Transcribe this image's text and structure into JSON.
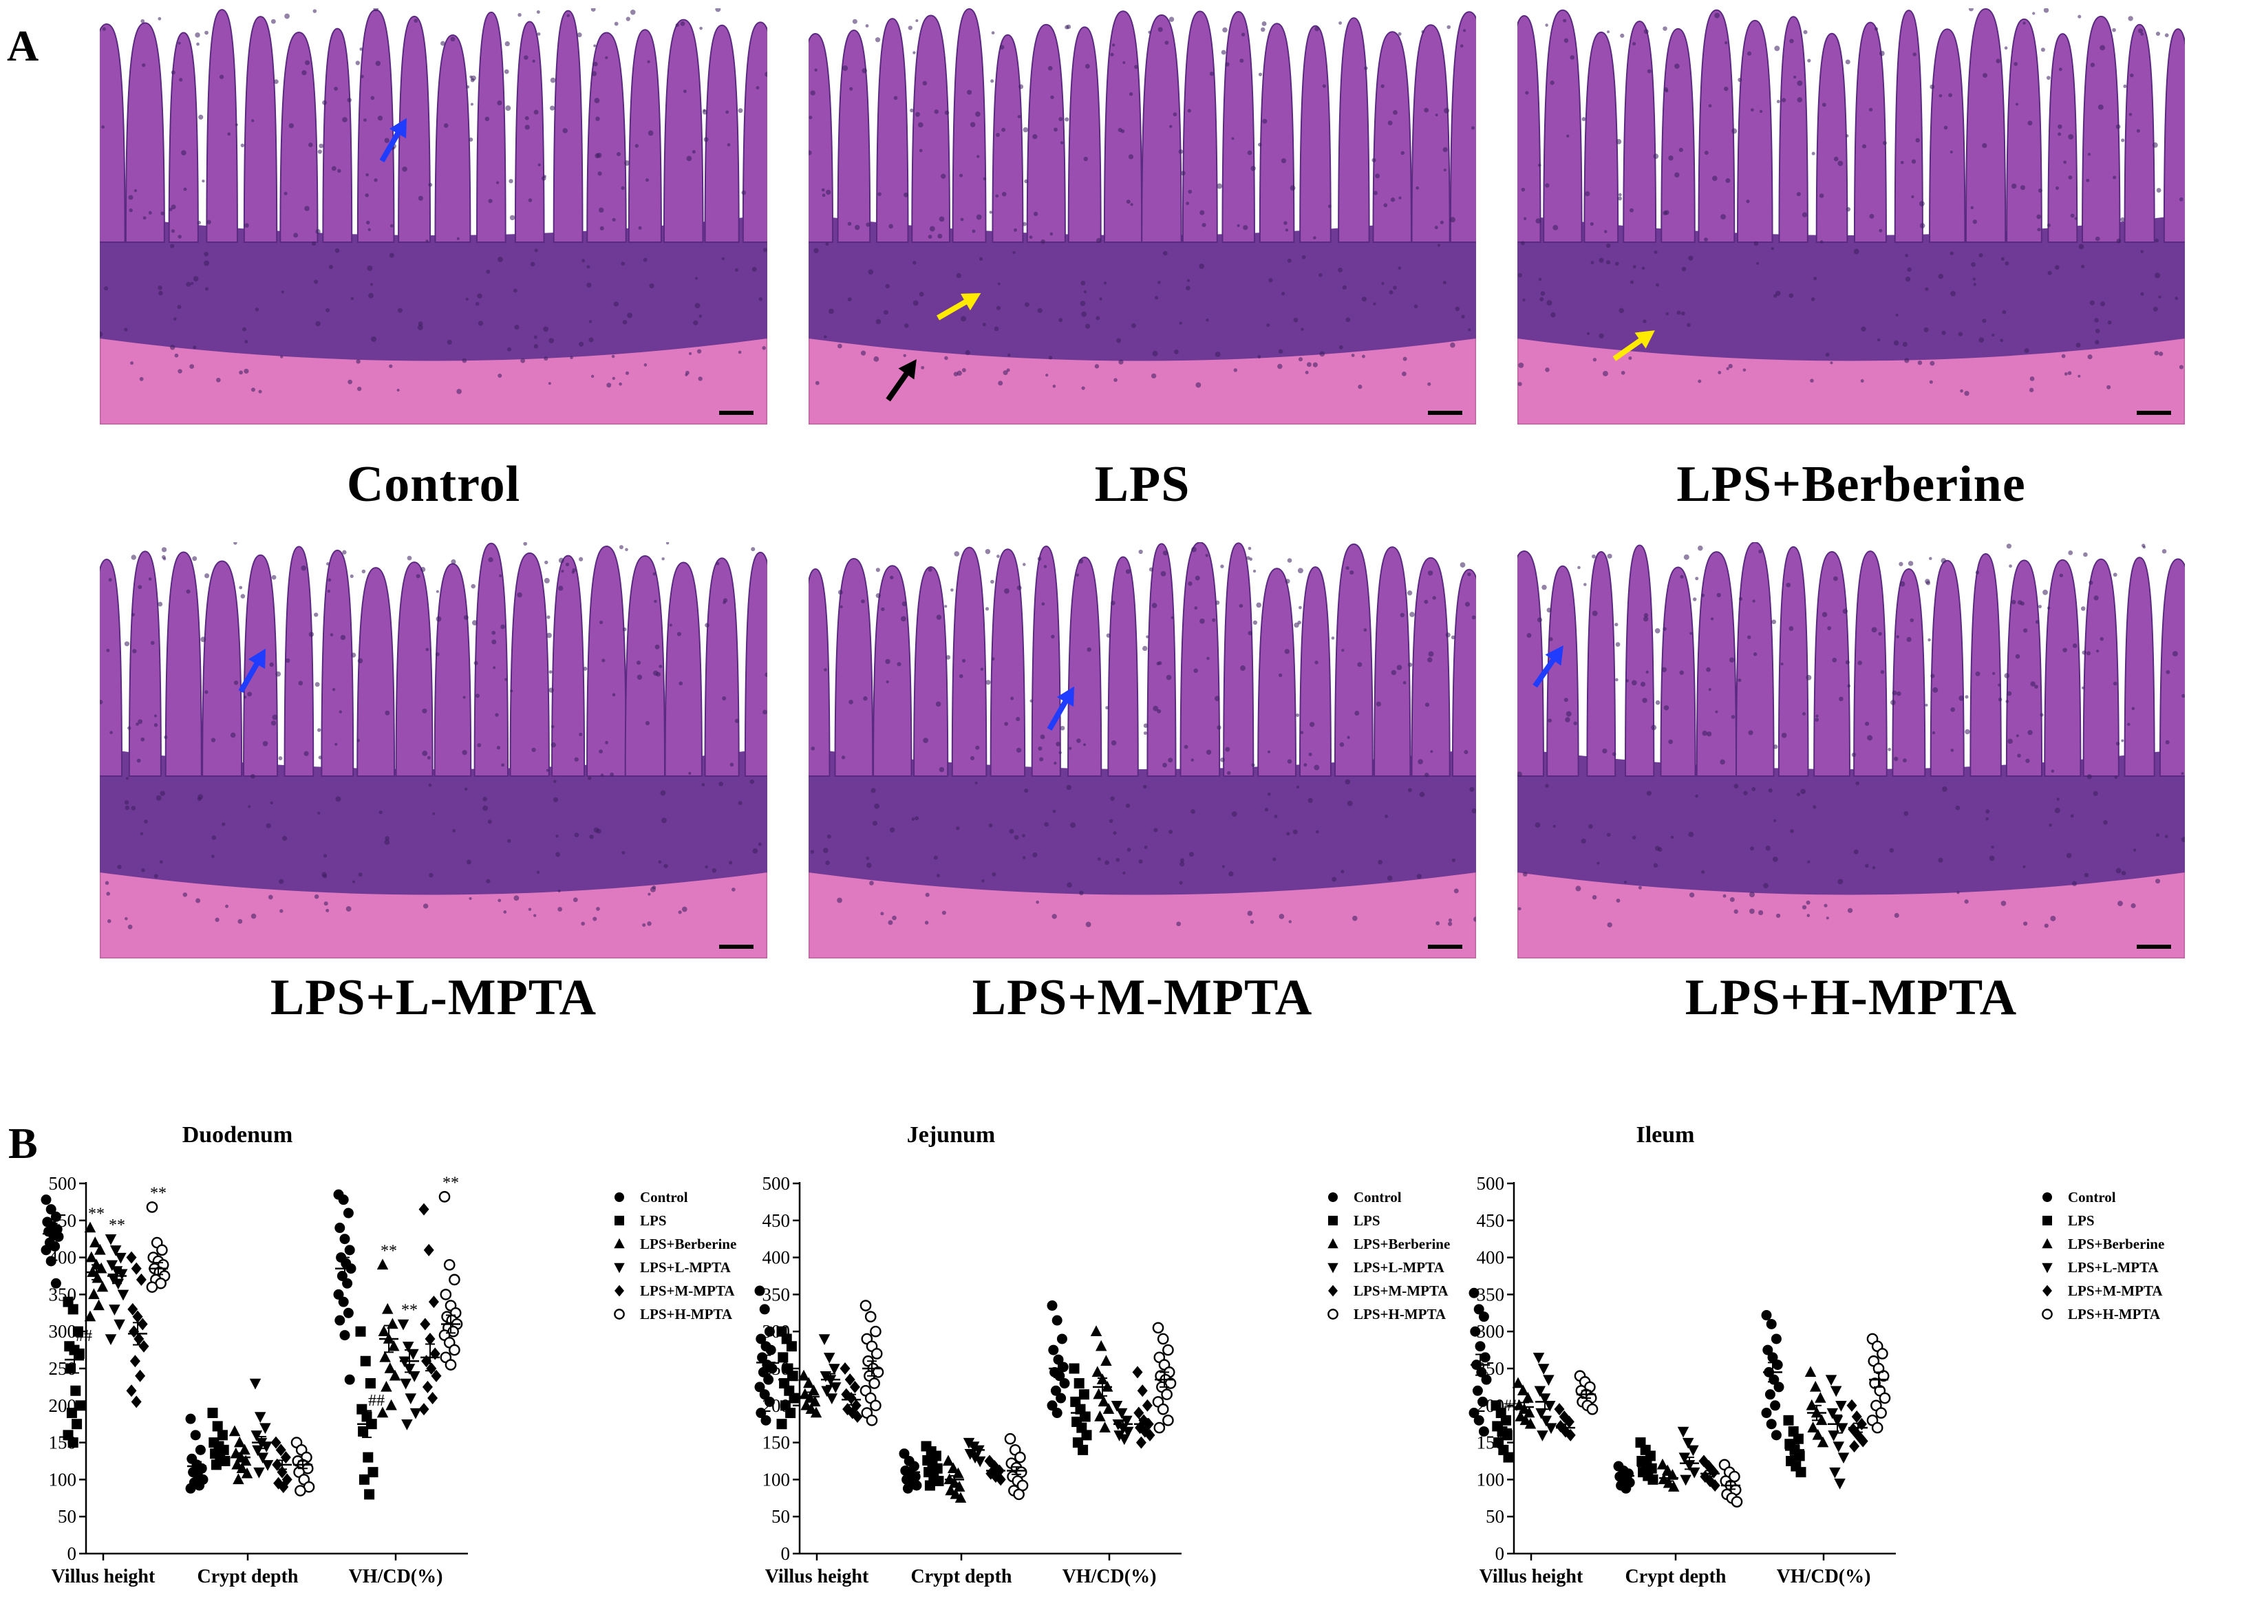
{
  "panel_labels": {
    "a": "A",
    "b": "B"
  },
  "micrographs": [
    {
      "label": "Control",
      "arrows": [
        "blue"
      ]
    },
    {
      "label": "LPS",
      "arrows": [
        "yellow",
        "black"
      ]
    },
    {
      "label": "LPS+Berberine",
      "arrows": [
        "yellow"
      ]
    },
    {
      "label": "LPS+L-MPTA",
      "arrows": [
        "blue"
      ]
    },
    {
      "label": "LPS+M-MPTA",
      "arrows": [
        "blue"
      ]
    },
    {
      "label": "LPS+H-MPTA",
      "arrows": [
        "blue"
      ]
    }
  ],
  "colors": {
    "tissue_bg": "#c77ac8",
    "villus": "#9a4fb0",
    "crypt": "#6f3a95",
    "muscle": "#e07ac0",
    "lumen": "#ffffff",
    "arrow_blue": "#1f3cff",
    "arrow_yellow": "#ffea00",
    "arrow_black": "#000000"
  },
  "legend": [
    "Control",
    "LPS",
    "LPS+Berberine",
    "LPS+L-MPTA",
    "LPS+M-MPTA",
    "LPS+H-MPTA"
  ],
  "marker_symbols": [
    "circle",
    "square",
    "triangle",
    "triangle-down",
    "diamond",
    "open-circle"
  ],
  "chart_data": [
    {
      "type": "scatter",
      "title": "Duodenum",
      "categories": [
        "Villus height",
        "Crypt depth",
        "VH/CD(%)"
      ],
      "ylim": [
        0,
        500
      ],
      "yticks": [
        0,
        50,
        100,
        150,
        200,
        250,
        300,
        350,
        400,
        450,
        500
      ],
      "series": [
        {
          "name": "Control",
          "values": [
            [
              478,
              465,
              455,
              448,
              442,
              438,
              435,
              430,
              428,
              420,
              415,
              410,
              395,
              365
            ],
            [
              182,
              160,
              140,
              128,
              120,
              115,
              110,
              105,
              100,
              96,
              92,
              88
            ],
            [
              485,
              478,
              460,
              440,
              425,
              410,
              400,
              392,
              385,
              375,
              365,
              350,
              340,
              325,
              315,
              295,
              235
            ]
          ]
        },
        {
          "name": "LPS",
          "values": [
            [
              340,
              330,
              300,
              280,
              275,
              270,
              250,
              220,
              200,
              190,
              175,
              160,
              150
            ],
            [
              190,
              172,
              160,
              150,
              145,
              140,
              135,
              130,
              125,
              120
            ],
            [
              300,
              260,
              230,
              195,
              185,
              175,
              165,
              130,
              110,
              100,
              80
            ]
          ]
        },
        {
          "name": "LPS+Berberine",
          "values": [
            [
              440,
              420,
              410,
              400,
              390,
              385,
              380,
              372,
              360,
              350,
              335,
              320
            ],
            [
              165,
              150,
              140,
              135,
              130,
              125,
              120,
              115,
              108,
              100
            ],
            [
              390,
              330,
              310,
              300,
              290,
              280,
              265,
              250,
              240,
              225,
              200,
              190
            ]
          ]
        },
        {
          "name": "LPS+L-MPTA",
          "values": [
            [
              425,
              410,
              400,
              390,
              382,
              378,
              372,
              365,
              350,
              330,
              310,
              290
            ],
            [
              230,
              185,
              170,
              160,
              150,
              145,
              140,
              130,
              120,
              110
            ],
            [
              310,
              280,
              270,
              260,
              250,
              240,
              230,
              210,
              190,
              175
            ]
          ]
        },
        {
          "name": "LPS+M-MPTA",
          "values": [
            [
              400,
              385,
              370,
              330,
              320,
              310,
              300,
              290,
              280,
              260,
              240,
              220,
              205
            ],
            [
              150,
              140,
              130,
              120,
              110,
              100,
              95,
              90
            ],
            [
              465,
              410,
              340,
              310,
              290,
              270,
              260,
              250,
              240,
              225,
              210,
              195
            ]
          ]
        },
        {
          "name": "LPS+H-MPTA",
          "values": [
            [
              468,
              420,
              410,
              400,
              395,
              390,
              385,
              380,
              375,
              370,
              365,
              360
            ],
            [
              150,
              140,
              130,
              125,
              120,
              115,
              110,
              100,
              90,
              85
            ],
            [
              482,
              390,
              370,
              350,
              335,
              325,
              320,
              315,
              310,
              305,
              300,
              295,
              285,
              275,
              265,
              255
            ]
          ]
        }
      ],
      "means": [
        [
          432,
          262,
          380,
          375,
          297,
          385
        ],
        [
          118,
          145,
          130,
          150,
          120,
          120
        ],
        [
          385,
          175,
          290,
          260,
          265,
          310
        ]
      ],
      "sem": [
        [
          8,
          18,
          10,
          10,
          15,
          8
        ],
        [
          6,
          6,
          6,
          8,
          6,
          5
        ],
        [
          15,
          18,
          18,
          15,
          18,
          12
        ]
      ],
      "annotations": [
        {
          "category": 0,
          "series": 1,
          "text": "##"
        },
        {
          "category": 0,
          "series": 2,
          "text": "**"
        },
        {
          "category": 0,
          "series": 3,
          "text": "**"
        },
        {
          "category": 0,
          "series": 5,
          "text": "**"
        },
        {
          "category": 2,
          "series": 1,
          "text": "##"
        },
        {
          "category": 2,
          "series": 2,
          "text": "**"
        },
        {
          "category": 2,
          "series": 3,
          "text": "**"
        },
        {
          "category": 2,
          "series": 5,
          "text": "**"
        }
      ]
    },
    {
      "type": "scatter",
      "title": "Jejunum",
      "categories": [
        "Villus height",
        "Crypt depth",
        "VH/CD(%)"
      ],
      "ylim": [
        0,
        500
      ],
      "yticks": [
        0,
        50,
        100,
        150,
        200,
        250,
        300,
        350,
        400,
        450,
        500
      ],
      "series": [
        {
          "name": "Control",
          "values": [
            [
              355,
              330,
              300,
              290,
              280,
              275,
              265,
              255,
              250,
              245,
              235,
              225,
              215,
              205,
              190,
              180
            ],
            [
              135,
              125,
              118,
              112,
              108,
              104,
              100,
              96,
              92,
              88
            ],
            [
              335,
              315,
              290,
              275,
              262,
              252,
              245,
              240,
              230,
              220,
              210,
              200,
              190
            ]
          ]
        },
        {
          "name": "LPS",
          "values": [
            [
              300,
              290,
              280,
              265,
              250,
              240,
              230,
              220,
              210,
              200,
              190,
              175
            ],
            [
              145,
              138,
              132,
              126,
              120,
              115,
              110,
              104,
              98,
              92
            ],
            [
              250,
              230,
              215,
              205,
              195,
              185,
              178,
              170,
              160,
              150,
              140
            ]
          ]
        },
        {
          "name": "LPS+Berberine",
          "values": [
            [
              240,
              230,
              220,
              215,
              210,
              205,
              200,
              195,
              190
            ],
            [
              125,
              115,
              108,
              100,
              95,
              90,
              85,
              80,
              75
            ],
            [
              300,
              280,
              260,
              245,
              235,
              225,
              215,
              205,
              195,
              185,
              170
            ]
          ]
        },
        {
          "name": "LPS+L-MPTA",
          "values": [
            [
              290,
              265,
              250,
              240,
              235,
              225,
              220,
              210
            ],
            [
              150,
              145,
              140,
              135,
              130,
              125
            ],
            [
              200,
              190,
              180,
              175,
              170,
              165,
              160,
              155
            ]
          ]
        },
        {
          "name": "LPS+M-MPTA",
          "values": [
            [
              250,
              235,
              225,
              215,
              210,
              200,
              195,
              190,
              185
            ],
            [
              125,
              118,
              112,
              108,
              104,
              100
            ],
            [
              245,
              220,
              200,
              190,
              180,
              175,
              170,
              165,
              160,
              150
            ]
          ]
        },
        {
          "name": "LPS+H-MPTA",
          "values": [
            [
              335,
              320,
              300,
              290,
              280,
              270,
              260,
              250,
              245,
              240,
              230,
              220,
              210,
              200,
              190,
              180
            ],
            [
              155,
              140,
              130,
              122,
              116,
              110,
              104,
              98,
              92,
              85,
              80
            ],
            [
              305,
              290,
              275,
              265,
              255,
              245,
              240,
              235,
              230,
              225,
              215,
              205,
              195,
              180,
              170
            ]
          ]
        }
      ],
      "means": [
        [
          258,
          235,
          212,
          235,
          208,
          250
        ],
        [
          110,
          120,
          100,
          140,
          112,
          112
        ],
        [
          250,
          190,
          225,
          175,
          175,
          235
        ]
      ],
      "sem": [
        [
          10,
          10,
          6,
          8,
          7,
          10
        ],
        [
          4,
          5,
          5,
          4,
          4,
          5
        ],
        [
          12,
          10,
          12,
          5,
          7,
          10
        ]
      ],
      "annotations": []
    },
    {
      "type": "scatter",
      "title": "Ileum",
      "categories": [
        "Villus height",
        "Crypt depth",
        "VH/CD(%)"
      ],
      "ylim": [
        0,
        500
      ],
      "yticks": [
        0,
        50,
        100,
        150,
        200,
        250,
        300,
        350,
        400,
        450,
        500
      ],
      "series": [
        {
          "name": "Control",
          "values": [
            [
              352,
              330,
              320,
              300,
              280,
              265,
              255,
              245,
              235,
              220,
              205,
              190,
              180,
              165
            ],
            [
              118,
              112,
              108,
              104,
              100,
              96,
              92,
              88
            ],
            [
              322,
              310,
              290,
              275,
              265,
              255,
              245,
              235,
              225,
              215,
              200,
              190,
              175,
              160
            ]
          ]
        },
        {
          "name": "LPS",
          "values": [
            [
              200,
              190,
              180,
              172,
              165,
              160,
              150,
              140,
              130
            ],
            [
              150,
              140,
              132,
              125,
              120,
              115,
              110,
              105,
              100
            ],
            [
              180,
              165,
              155,
              148,
              140,
              132,
              125,
              118,
              110
            ]
          ]
        },
        {
          "name": "LPS+Berberine",
          "values": [
            [
              230,
              220,
              210,
              200,
              195,
              190,
              185,
              180,
              175
            ],
            [
              120,
              112,
              106,
              100,
              95,
              90
            ],
            [
              245,
              225,
              210,
              200,
              190,
              180,
              170,
              160,
              150
            ]
          ]
        },
        {
          "name": "LPS+L-MPTA",
          "values": [
            [
              265,
              250,
              235,
              220,
              210,
              200,
              190,
              180,
              170,
              160
            ],
            [
              165,
              150,
              140,
              130,
              120,
              110,
              100
            ],
            [
              235,
              220,
              200,
              190,
              180,
              170,
              160,
              145,
              130,
              110,
              95
            ]
          ]
        },
        {
          "name": "LPS+M-MPTA",
          "values": [
            [
              195,
              185,
              178,
              172,
              165,
              160
            ],
            [
              125,
              118,
              110,
              104,
              98,
              92
            ],
            [
              200,
              185,
              175,
              168,
              160,
              152,
              145
            ]
          ]
        },
        {
          "name": "LPS+H-MPTA",
          "values": [
            [
              240,
              232,
              225,
              220,
              215,
              210,
              205,
              200,
              195
            ],
            [
              120,
              110,
              104,
              98,
              92,
              86,
              80,
              75,
              70
            ],
            [
              290,
              280,
              270,
              260,
              250,
              240,
              230,
              220,
              210,
              200,
              190,
              180,
              170
            ]
          ]
        }
      ],
      "means": [
        [
          255,
          168,
          198,
          205,
          170,
          215
        ],
        [
          105,
          118,
          102,
          122,
          108,
          92
        ],
        [
          245,
          140,
          190,
          175,
          170,
          235
        ]
      ],
      "sem": [
        [
          14,
          8,
          6,
          10,
          5,
          5
        ],
        [
          4,
          6,
          4,
          8,
          4,
          5
        ],
        [
          13,
          8,
          10,
          12,
          6,
          10
        ]
      ],
      "annotations": [
        {
          "category": 0,
          "series": 1,
          "text": "##"
        }
      ]
    }
  ]
}
